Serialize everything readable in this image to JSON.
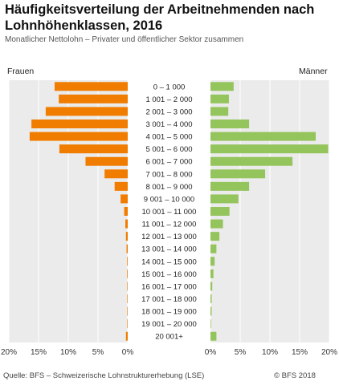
{
  "header": {
    "title": "Häufigkeitsverteilung der Arbeitnehmenden nach Lohnhöhenklassen, 2016",
    "subtitle": "Monatlicher Nettolohn – Privater und öffentlicher Sektor zusammen"
  },
  "footer": {
    "source": "Quelle: BFS – Schweizerische Lohnstrukturerhebung (LSE)",
    "copyright": "© BFS 2018"
  },
  "chart_data": {
    "type": "bar",
    "orientation": "horizontal",
    "layout": "population-pyramid",
    "categories": [
      "0 – 1 000",
      "1 001 – 2 000",
      "2 001 – 3 000",
      "3 001 – 4 000",
      "4 001 – 5 000",
      "5 001 – 6 000",
      "6 001 – 7 000",
      "7 001 – 8 000",
      "8 001 – 9 000",
      "9 001 – 10 000",
      "10 001 – 11 000",
      "11 001 – 12 000",
      "12 001 – 13 000",
      "13 001 – 14 000",
      "14 001 – 15 000",
      "15 001 – 16 000",
      "16 001 – 17 000",
      "17 001 – 18 000",
      "18 001 – 19 000",
      "19 001 – 20 000",
      "20 001+"
    ],
    "series": [
      {
        "name": "Frauen",
        "color": "#f07d00",
        "side": "left",
        "values": [
          12.3,
          11.6,
          13.8,
          16.2,
          16.5,
          11.5,
          7.1,
          3.9,
          2.2,
          1.2,
          0.6,
          0.4,
          0.3,
          0.2,
          0.1,
          0.1,
          0.05,
          0.05,
          0.05,
          0.05,
          0.3
        ]
      },
      {
        "name": "Männer",
        "color": "#94c45c",
        "side": "right",
        "values": [
          3.9,
          3.1,
          3.0,
          6.5,
          17.7,
          19.8,
          13.8,
          9.2,
          6.5,
          4.7,
          3.2,
          2.1,
          1.5,
          1.0,
          0.7,
          0.5,
          0.3,
          0.2,
          0.2,
          0.1,
          1.0
        ]
      }
    ],
    "xlim": [
      0,
      20
    ],
    "xticks": [
      0,
      5,
      10,
      15,
      20
    ],
    "left_tick_labels": [
      "20%",
      "15%",
      "10%",
      "5%",
      "0%"
    ],
    "right_tick_labels": [
      "0%",
      "5%",
      "10%",
      "15%",
      "20%"
    ],
    "grid": true,
    "background": "#ebebeb"
  }
}
